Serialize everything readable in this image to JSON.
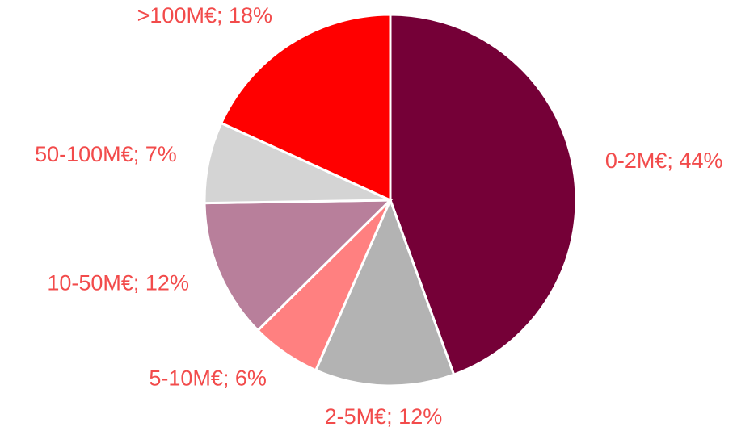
{
  "chart_data": {
    "type": "pie",
    "value_labels": [
      "0-2M€; 44%",
      "2-5M€; 12%",
      "5-10M€; 6%",
      "10-50M€; 12%",
      "50-100M€; 7%",
      ">100M€; 18%"
    ],
    "values": [
      44,
      12,
      6,
      12,
      7,
      18
    ],
    "colors": [
      "#750037",
      "#b3b3b3",
      "#ff8080",
      "#b87f9b",
      "#d4d4d4",
      "#ff0000"
    ],
    "label_color": "#f24b4b"
  }
}
